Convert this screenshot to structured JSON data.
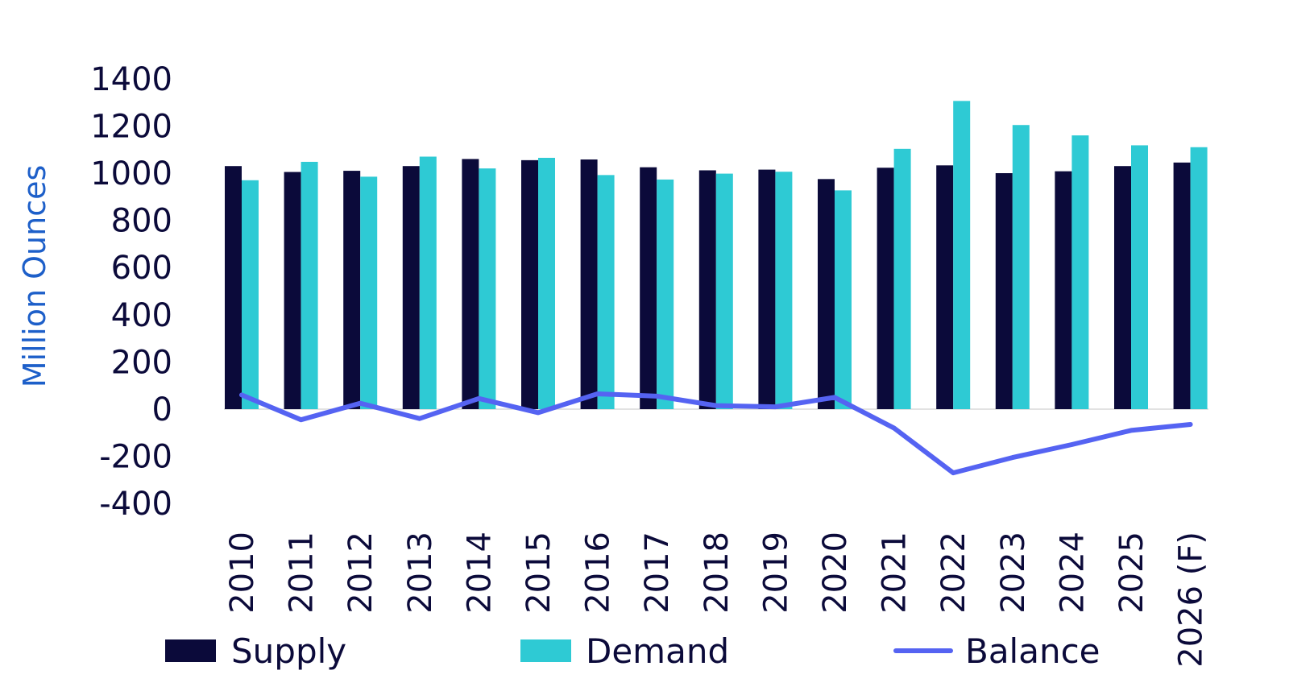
{
  "chart_data": {
    "type": "bar",
    "ylabel": "Million Ounces",
    "xlabel": "",
    "ylim": [
      -400,
      1400
    ],
    "yticks": [
      -400,
      -200,
      0,
      200,
      400,
      600,
      800,
      1000,
      1200,
      1400
    ],
    "categories": [
      "2010",
      "2011",
      "2012",
      "2013",
      "2014",
      "2015",
      "2016",
      "2017",
      "2018",
      "2019",
      "2020",
      "2021",
      "2022",
      "2023",
      "2024",
      "2025",
      "2026 (F)"
    ],
    "series": [
      {
        "name": "Supply",
        "kind": "bar",
        "color": "#0b0a3a",
        "values": [
          1030,
          1005,
          1010,
          1030,
          1060,
          1055,
          1058,
          1025,
          1012,
          1015,
          975,
          1023,
          1033,
          1000,
          1008,
          1030,
          1045
        ]
      },
      {
        "name": "Demand",
        "kind": "bar",
        "color": "#2ecad4",
        "values": [
          970,
          1048,
          985,
          1070,
          1020,
          1065,
          992,
          973,
          998,
          1006,
          927,
          1103,
          1306,
          1204,
          1160,
          1118,
          1110
        ]
      },
      {
        "name": "Balance",
        "kind": "line",
        "color": "#5563f2",
        "values": [
          60,
          -45,
          25,
          -40,
          45,
          -15,
          65,
          55,
          15,
          10,
          50,
          -80,
          -270,
          -205,
          -150,
          -90,
          -65
        ]
      }
    ],
    "legend": {
      "position": "bottom"
    },
    "grid": false,
    "colors": {
      "axis_title": "#1d5fc9",
      "text": "#0b0a3a",
      "zero_line": "#d9d9d9"
    }
  }
}
